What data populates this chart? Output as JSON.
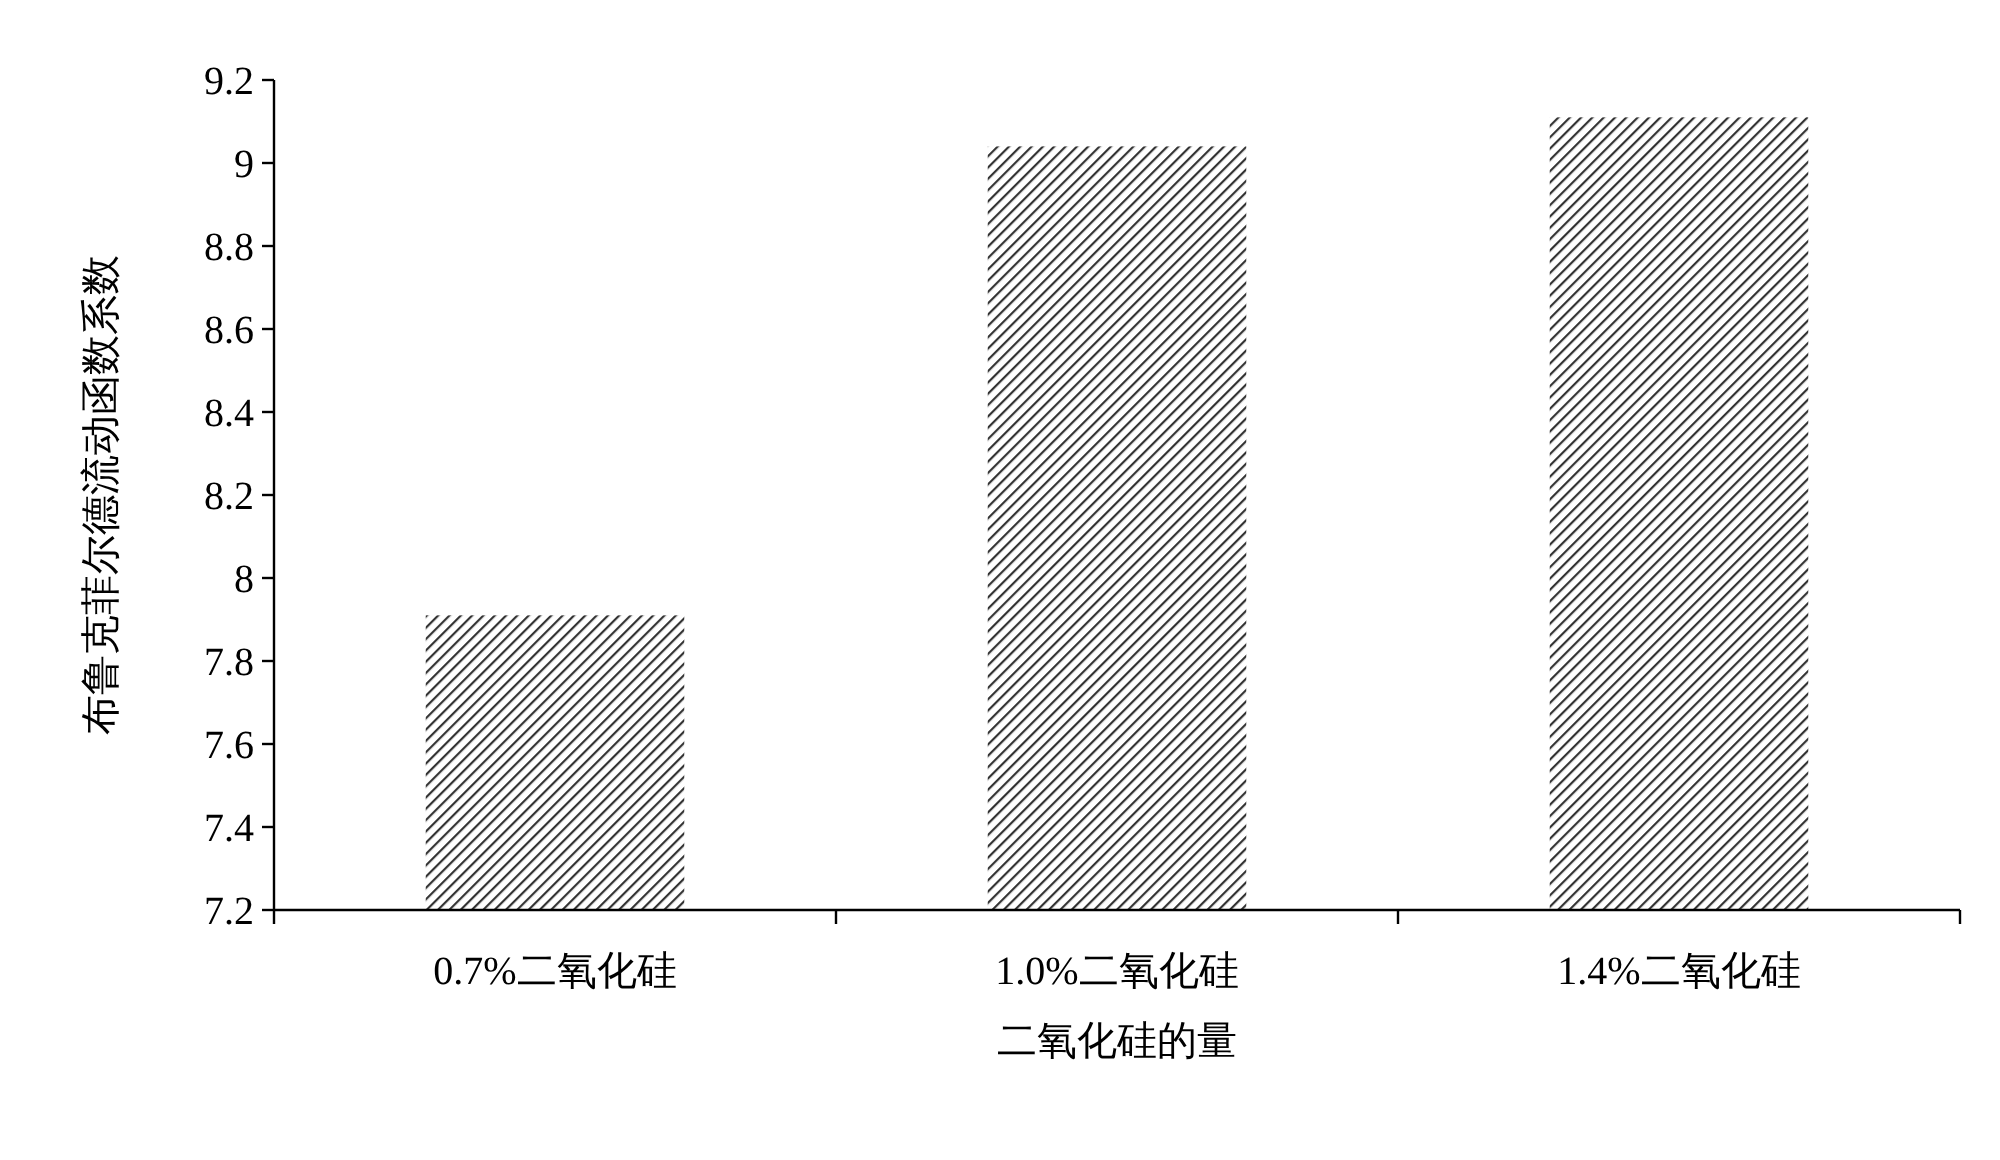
{
  "chart_data": {
    "type": "bar",
    "xlabel": "二氧化硅的量",
    "ylabel": "布鲁克菲尔德流动函数系数",
    "categories": [
      "0.7%二氧化硅",
      "1.0%二氧化硅",
      "1.4%二氧化硅"
    ],
    "values": [
      7.91,
      9.04,
      9.11
    ],
    "color": "#333333",
    "ylim": [
      7.2,
      9.2
    ],
    "yticks": [
      {
        "value": 7.2,
        "label": "7.2"
      },
      {
        "value": 7.4,
        "label": "7.4"
      },
      {
        "value": 7.6,
        "label": "7.6"
      },
      {
        "value": 7.8,
        "label": "7.8"
      },
      {
        "value": 8,
        "label": "8"
      },
      {
        "value": 8.2,
        "label": "8.2"
      },
      {
        "value": 8.4,
        "label": "8.4"
      },
      {
        "value": 8.6,
        "label": "8.6"
      },
      {
        "value": 8.8,
        "label": "8.8"
      },
      {
        "value": 9,
        "label": "9"
      },
      {
        "value": 9.2,
        "label": "9.2"
      }
    ],
    "grid": false
  }
}
